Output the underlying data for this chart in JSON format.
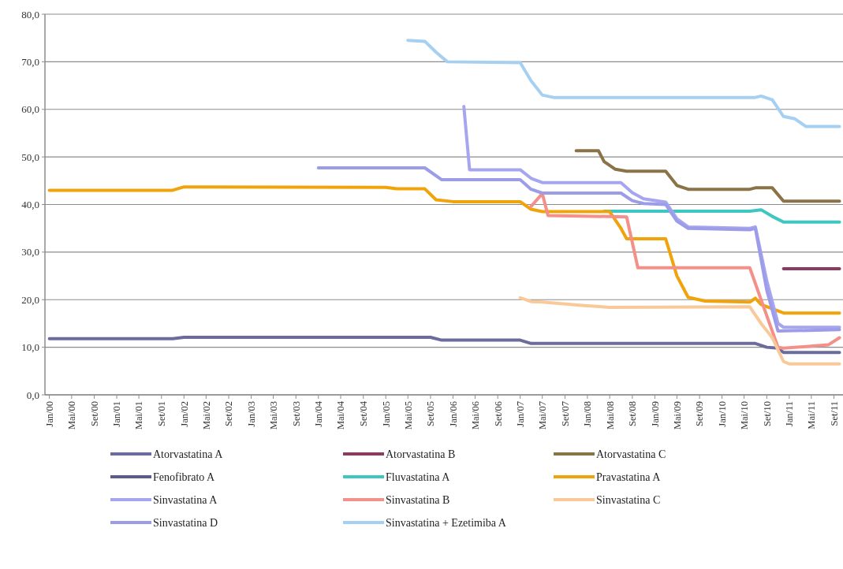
{
  "chart_data": {
    "type": "line",
    "xlim": [
      "1999-12-08",
      "2011-10-20"
    ],
    "ylim": [
      0,
      80
    ],
    "yticks": [
      {
        "value": 0,
        "label": "0,0"
      },
      {
        "value": 10,
        "label": "10,0"
      },
      {
        "value": 20,
        "label": "20,0"
      },
      {
        "value": 30,
        "label": "30,0"
      },
      {
        "value": 40,
        "label": "40,0"
      },
      {
        "value": 50,
        "label": "50,0"
      },
      {
        "value": 60,
        "label": "60,0"
      },
      {
        "value": 70,
        "label": "70,0"
      },
      {
        "value": 80,
        "label": "80,0"
      }
    ],
    "xticks": [
      {
        "value": "2000-01",
        "label": "Jan/00"
      },
      {
        "value": "2000-05",
        "label": "Mai/00"
      },
      {
        "value": "2000-09",
        "label": "Set/00"
      },
      {
        "value": "2001-01",
        "label": "Jan/01"
      },
      {
        "value": "2001-05",
        "label": "Mai/01"
      },
      {
        "value": "2001-09",
        "label": "Set/01"
      },
      {
        "value": "2002-01",
        "label": "Jan/02"
      },
      {
        "value": "2002-05",
        "label": "Mai/02"
      },
      {
        "value": "2002-09",
        "label": "Set/02"
      },
      {
        "value": "2003-01",
        "label": "Jan/03"
      },
      {
        "value": "2003-05",
        "label": "Mai/03"
      },
      {
        "value": "2003-09",
        "label": "Set/03"
      },
      {
        "value": "2004-01",
        "label": "Jan/04"
      },
      {
        "value": "2004-05",
        "label": "Mai/04"
      },
      {
        "value": "2004-09",
        "label": "Set/04"
      },
      {
        "value": "2005-01",
        "label": "Jan/05"
      },
      {
        "value": "2005-05",
        "label": "Mai/05"
      },
      {
        "value": "2005-09",
        "label": "Set/05"
      },
      {
        "value": "2006-01",
        "label": "Jan/06"
      },
      {
        "value": "2006-05",
        "label": "Mai/06"
      },
      {
        "value": "2006-09",
        "label": "Set/06"
      },
      {
        "value": "2007-01",
        "label": "Jan/07"
      },
      {
        "value": "2007-05",
        "label": "Mai/07"
      },
      {
        "value": "2007-09",
        "label": "Set/07"
      },
      {
        "value": "2008-01",
        "label": "Jan/08"
      },
      {
        "value": "2008-05",
        "label": "Mai/08"
      },
      {
        "value": "2008-09",
        "label": "Set/08"
      },
      {
        "value": "2009-01",
        "label": "Jan/09"
      },
      {
        "value": "2009-05",
        "label": "Mai/09"
      },
      {
        "value": "2009-09",
        "label": "Set/09"
      },
      {
        "value": "2010-01",
        "label": "Jan/10"
      },
      {
        "value": "2010-05",
        "label": "Mai/10"
      },
      {
        "value": "2010-09",
        "label": "Set/10"
      },
      {
        "value": "2011-01",
        "label": "Jan/11"
      },
      {
        "value": "2011-05",
        "label": "Mai/11"
      },
      {
        "value": "2011-09",
        "label": "Set/11"
      }
    ],
    "grid": "y",
    "legend": "bottom",
    "marker": "none",
    "line_style": "solid",
    "series": [
      {
        "name": "Atorvastatina A",
        "color": "#6c6c9c",
        "x": [
          "2000-01",
          "2001-11",
          "2002-01",
          "2005-09",
          "2005-11",
          "2007-01",
          "2007-03",
          "2010-07",
          "2010-09",
          "2010-11",
          "2010-12",
          "2011-10"
        ],
        "values": [
          11.8,
          11.8,
          12.1,
          12.1,
          11.5,
          11.5,
          10.8,
          10.8,
          10.0,
          9.8,
          8.9,
          8.9
        ]
      },
      {
        "name": "Atorvastatina B",
        "color": "#8b3a62",
        "x": [
          "2010-12",
          "2011-10"
        ],
        "values": [
          26.5,
          26.5
        ]
      },
      {
        "name": "Atorvastatina C",
        "color": "#8b7348",
        "x": [
          "2007-11",
          "2008-03",
          "2008-04",
          "2008-06",
          "2008-08",
          "2009-03",
          "2009-05",
          "2009-07",
          "2010-06",
          "2010-07",
          "2010-10",
          "2010-12",
          "2011-10"
        ],
        "values": [
          51.3,
          51.3,
          49,
          47.4,
          47.0,
          47.0,
          44,
          43.2,
          43.2,
          43.5,
          43.5,
          40.7,
          40.7
        ]
      },
      {
        "name": "Fenofibrato A",
        "color": "#5c5c8a"
      },
      {
        "name": "Fluvastatina A",
        "color": "#3fc6c0",
        "x": [
          "2008-04",
          "2010-06",
          "2010-08",
          "2010-10",
          "2010-12",
          "2011-10"
        ],
        "values": [
          38.6,
          38.6,
          38.9,
          37.5,
          36.3,
          36.3
        ]
      },
      {
        "name": "Pravastatina A",
        "color": "#f0a30a",
        "x": [
          "2000-01",
          "2001-11",
          "2002-01",
          "2005-01",
          "2005-03",
          "2005-08",
          "2005-10",
          "2006-01",
          "2007-01",
          "2007-03",
          "2007-05",
          "2008-05",
          "2008-07",
          "2008-08",
          "2009-03",
          "2009-05",
          "2009-07",
          "2009-10",
          "2010-06",
          "2010-07",
          "2010-08",
          "2010-12",
          "2011-10"
        ],
        "values": [
          43.0,
          43.0,
          43.7,
          43.6,
          43.3,
          43.3,
          41.0,
          40.6,
          40.6,
          39.0,
          38.5,
          38.5,
          35,
          32.8,
          32.8,
          25,
          20.5,
          19.7,
          19.5,
          20.3,
          19,
          17.2,
          17.2
        ]
      },
      {
        "name": "Sinvastatina A",
        "color": "#a6a6f0",
        "x": [
          "2006-03",
          "2006-04",
          "2007-01",
          "2007-03",
          "2007-05",
          "2008-07",
          "2008-09",
          "2008-11",
          "2009-03",
          "2009-05",
          "2009-07",
          "2010-06",
          "2010-07",
          "2010-09",
          "2010-11",
          "2010-12",
          "2011-10"
        ],
        "values": [
          60.6,
          47.3,
          47.3,
          45.5,
          44.6,
          44.6,
          42.5,
          41.2,
          40.5,
          37,
          35.3,
          35.0,
          35.3,
          24,
          15,
          14.2,
          14.2
        ]
      },
      {
        "name": "Sinvastatina B",
        "color": "#f4908a",
        "x": [
          "2007-03",
          "2007-05",
          "2007-06",
          "2008-08",
          "2008-10",
          "2010-06",
          "2010-08",
          "2010-11",
          "2010-12",
          "2011-08",
          "2011-10"
        ],
        "values": [
          39.6,
          42.3,
          37.7,
          37.4,
          26.7,
          26.7,
          20,
          10.0,
          9.8,
          10.5,
          12.0
        ]
      },
      {
        "name": "Sinvastatina C",
        "color": "#f9c99a",
        "x": [
          "2007-01",
          "2007-03",
          "2007-05",
          "2007-12",
          "2008-05",
          "2010-06",
          "2010-08",
          "2010-10",
          "2010-12",
          "2011-01",
          "2011-10"
        ],
        "values": [
          20.4,
          19.6,
          19.5,
          18.8,
          18.4,
          18.5,
          15,
          12,
          7,
          6.5,
          6.5
        ]
      },
      {
        "name": "Sinvastatina D",
        "color": "#9c9ce8",
        "x": [
          "2004-01",
          "2005-08",
          "2005-11",
          "2007-01",
          "2007-03",
          "2007-05",
          "2008-07",
          "2008-09",
          "2008-11",
          "2009-03",
          "2009-05",
          "2009-07",
          "2010-06",
          "2010-07",
          "2010-09",
          "2010-11",
          "2011-10"
        ],
        "values": [
          47.7,
          47.7,
          45.2,
          45.2,
          43.2,
          42.4,
          42.4,
          40.8,
          40.2,
          40.0,
          36.5,
          35.0,
          34.7,
          35.0,
          22,
          13.4,
          13.7
        ]
      },
      {
        "name": "Sinvastatina + Ezetimiba A",
        "color": "#a6d0f2",
        "x": [
          "2005-05",
          "2005-08",
          "2005-10",
          "2005-12",
          "2007-01",
          "2007-03",
          "2007-05",
          "2007-07",
          "2010-07",
          "2010-08",
          "2010-10",
          "2010-12",
          "2011-02",
          "2011-04",
          "2011-10"
        ],
        "values": [
          74.5,
          74.3,
          72,
          70.0,
          69.8,
          66,
          63,
          62.5,
          62.5,
          62.8,
          62,
          58.5,
          58,
          56.4,
          56.4
        ]
      }
    ]
  }
}
